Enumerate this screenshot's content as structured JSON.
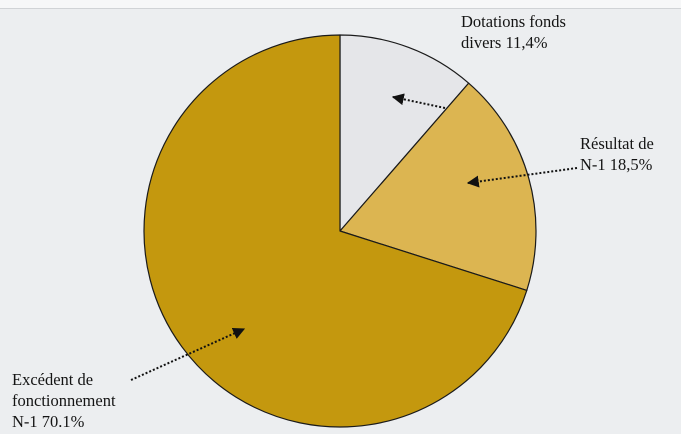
{
  "chart_data": {
    "type": "pie",
    "colors": {
      "background": "#eceef0",
      "slice_outline": "#1a1a1a",
      "arrow": "#111111"
    },
    "slices": [
      {
        "label_lines": [
          "Dotations fonds",
          "divers 11,4%"
        ],
        "value": 11.4,
        "color": "#e5e6e9"
      },
      {
        "label_lines": [
          "Résultat de",
          "N-1 18,5%"
        ],
        "value": 18.5,
        "color": "#dcb551"
      },
      {
        "label_lines": [
          "Excédent de",
          "fonctionnement",
          "N-1 70.1%"
        ],
        "value": 70.1,
        "color": "#c4980e"
      }
    ]
  }
}
